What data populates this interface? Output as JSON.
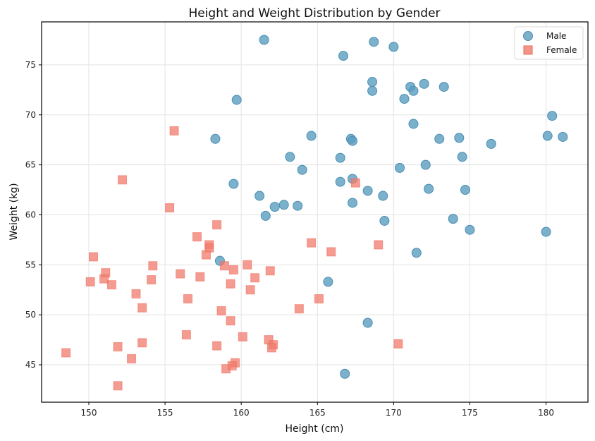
{
  "chart_data": {
    "type": "scatter",
    "title": "Height and Weight Distribution by Gender",
    "xlabel": "Height (cm)",
    "ylabel": "Weight (kg)",
    "xlim": [
      146.9,
      182.75
    ],
    "ylim": [
      41.26,
      79.3
    ],
    "xticks": [
      150,
      155,
      160,
      165,
      170,
      175,
      180
    ],
    "yticks": [
      45,
      50,
      55,
      60,
      65,
      70,
      75
    ],
    "grid": true,
    "legend_position": "top-right",
    "series": [
      {
        "name": "Male",
        "marker": "circle",
        "color": "#5b9dbf",
        "edge_color": "#4a8fb5",
        "points": [
          [
            161.5,
            77.5
          ],
          [
            166.7,
            75.9
          ],
          [
            168.7,
            77.3
          ],
          [
            170.0,
            76.8
          ],
          [
            171.1,
            72.8
          ],
          [
            171.3,
            72.4
          ],
          [
            172.0,
            73.1
          ],
          [
            173.3,
            72.8
          ],
          [
            170.7,
            71.6
          ],
          [
            168.6,
            73.3
          ],
          [
            168.6,
            72.4
          ],
          [
            159.7,
            71.5
          ],
          [
            171.3,
            69.1
          ],
          [
            180.4,
            69.9
          ],
          [
            180.1,
            67.9
          ],
          [
            181.1,
            67.8
          ],
          [
            176.4,
            67.1
          ],
          [
            174.3,
            67.7
          ],
          [
            173.0,
            67.6
          ],
          [
            167.2,
            67.6
          ],
          [
            167.3,
            67.4
          ],
          [
            164.6,
            67.9
          ],
          [
            158.3,
            67.6
          ],
          [
            163.2,
            65.8
          ],
          [
            166.5,
            65.7
          ],
          [
            174.5,
            65.8
          ],
          [
            172.1,
            65.0
          ],
          [
            170.4,
            64.7
          ],
          [
            164.0,
            64.5
          ],
          [
            159.5,
            63.1
          ],
          [
            166.5,
            63.3
          ],
          [
            167.3,
            63.6
          ],
          [
            172.3,
            62.6
          ],
          [
            174.7,
            62.5
          ],
          [
            168.3,
            62.4
          ],
          [
            169.3,
            61.9
          ],
          [
            161.2,
            61.9
          ],
          [
            162.2,
            60.8
          ],
          [
            162.8,
            61.0
          ],
          [
            163.7,
            60.9
          ],
          [
            161.6,
            59.9
          ],
          [
            167.3,
            61.2
          ],
          [
            169.4,
            59.4
          ],
          [
            173.9,
            59.6
          ],
          [
            175.0,
            58.5
          ],
          [
            180.0,
            58.3
          ],
          [
            171.5,
            56.2
          ],
          [
            158.6,
            55.4
          ],
          [
            165.7,
            53.3
          ],
          [
            168.3,
            49.2
          ],
          [
            166.8,
            44.1
          ]
        ]
      },
      {
        "name": "Female",
        "marker": "square",
        "color": "#f07b6c",
        "edge_color": "#ee6a5a",
        "points": [
          [
            155.6,
            68.4
          ],
          [
            152.2,
            63.5
          ],
          [
            155.3,
            60.7
          ],
          [
            158.4,
            59.0
          ],
          [
            157.1,
            57.8
          ],
          [
            157.9,
            57.0
          ],
          [
            157.9,
            56.7
          ],
          [
            157.7,
            56.0
          ],
          [
            150.3,
            55.8
          ],
          [
            164.6,
            57.2
          ],
          [
            165.9,
            56.3
          ],
          [
            169.0,
            57.0
          ],
          [
            167.5,
            63.2
          ],
          [
            151.1,
            54.2
          ],
          [
            151.0,
            53.6
          ],
          [
            154.2,
            54.9
          ],
          [
            156.0,
            54.1
          ],
          [
            150.1,
            53.3
          ],
          [
            151.5,
            53.0
          ],
          [
            154.1,
            53.5
          ],
          [
            157.3,
            53.8
          ],
          [
            158.9,
            54.9
          ],
          [
            159.5,
            54.5
          ],
          [
            160.4,
            55.0
          ],
          [
            161.9,
            54.4
          ],
          [
            160.9,
            53.7
          ],
          [
            159.3,
            53.1
          ],
          [
            160.6,
            52.5
          ],
          [
            153.1,
            52.1
          ],
          [
            153.5,
            50.7
          ],
          [
            156.5,
            51.6
          ],
          [
            158.7,
            50.4
          ],
          [
            159.3,
            49.4
          ],
          [
            163.8,
            50.6
          ],
          [
            165.1,
            51.6
          ],
          [
            160.1,
            47.8
          ],
          [
            161.8,
            47.5
          ],
          [
            162.1,
            47.0
          ],
          [
            162.0,
            46.7
          ],
          [
            156.4,
            48.0
          ],
          [
            158.4,
            46.9
          ],
          [
            151.9,
            46.8
          ],
          [
            153.5,
            47.2
          ],
          [
            148.5,
            46.2
          ],
          [
            152.8,
            45.6
          ],
          [
            159.6,
            45.2
          ],
          [
            159.4,
            44.9
          ],
          [
            159.0,
            44.6
          ],
          [
            151.9,
            42.9
          ],
          [
            170.3,
            47.1
          ]
        ]
      }
    ]
  }
}
